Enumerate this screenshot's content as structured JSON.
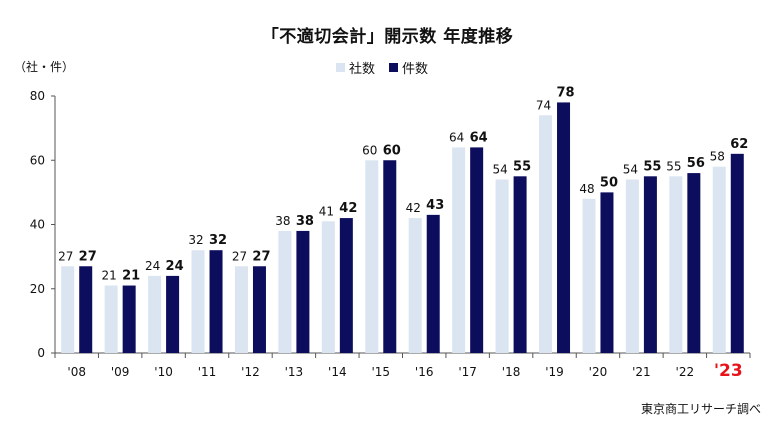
{
  "chart_data": {
    "type": "bar",
    "title": "「不適切会計」開示数 年度推移",
    "y_unit_label": "（社・件）",
    "source_note": "東京商工リサーチ調べ",
    "categories": [
      "'08",
      "'09",
      "'10",
      "'11",
      "'12",
      "'13",
      "'14",
      "'15",
      "'16",
      "'17",
      "'18",
      "'19",
      "'20",
      "'21",
      "'22",
      "'23"
    ],
    "highlight_category": "'23",
    "highlight_color": "#e8121a",
    "ylim": [
      0,
      80
    ],
    "yticks": [
      0,
      20,
      40,
      60,
      80
    ],
    "grid": false,
    "legend_position": "top-center",
    "series": [
      {
        "name": "社数",
        "color": "#dbe5f1",
        "values": [
          27,
          21,
          24,
          32,
          27,
          38,
          41,
          60,
          42,
          64,
          54,
          74,
          48,
          54,
          55,
          58
        ],
        "label_bold": false
      },
      {
        "name": "件数",
        "color": "#0d0d5e",
        "values": [
          27,
          21,
          24,
          32,
          27,
          38,
          42,
          60,
          43,
          64,
          55,
          78,
          50,
          55,
          56,
          62
        ],
        "label_bold": true
      }
    ]
  }
}
